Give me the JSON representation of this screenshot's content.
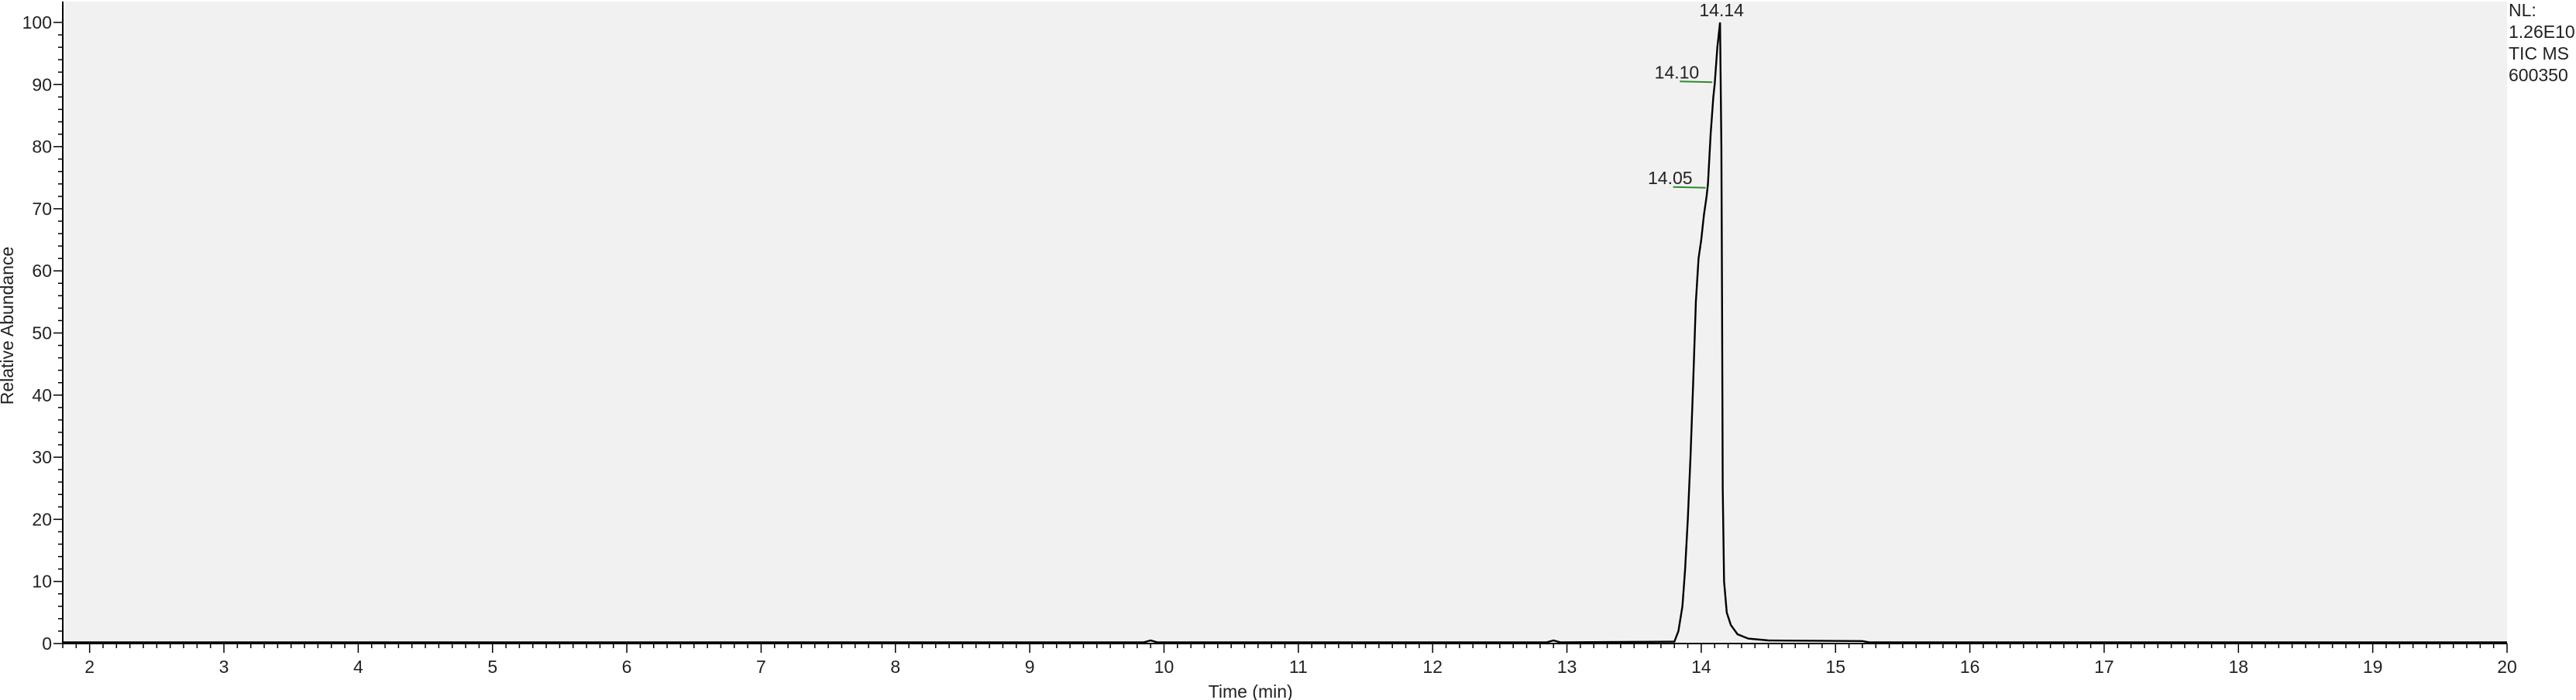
{
  "chart_data": {
    "type": "line",
    "title": "",
    "xlabel": "Time (min)",
    "ylabel": "Relative Abundance",
    "xlim": [
      1.8,
      20
    ],
    "ylim": [
      0,
      100
    ],
    "x_ticks": [
      "2",
      "3",
      "4",
      "5",
      "6",
      "7",
      "8",
      "9",
      "10",
      "11",
      "12",
      "13",
      "14",
      "15",
      "16",
      "17",
      "18",
      "19",
      "20"
    ],
    "y_ticks": [
      "0",
      "10",
      "20",
      "30",
      "40",
      "50",
      "60",
      "70",
      "80",
      "90",
      "100"
    ],
    "grid": false,
    "legend": "none",
    "colors": {
      "plot_background": "#f1f1f1",
      "trace": "#000000",
      "peak_marker": "#2e8b2e",
      "axis": "#000000"
    },
    "series": [
      {
        "points": [
          [
            1.8,
            0.2
          ],
          [
            9.85,
            0.2
          ],
          [
            9.9,
            0.5
          ],
          [
            9.95,
            0.2
          ],
          [
            12.85,
            0.2
          ],
          [
            12.9,
            0.5
          ],
          [
            12.95,
            0.2
          ],
          [
            13.8,
            0.3
          ],
          [
            13.83,
            2
          ],
          [
            13.86,
            6
          ],
          [
            13.88,
            12
          ],
          [
            13.9,
            20
          ],
          [
            13.92,
            30
          ],
          [
            13.94,
            42
          ],
          [
            13.96,
            55
          ],
          [
            13.98,
            62
          ],
          [
            14.0,
            65
          ],
          [
            14.02,
            69
          ],
          [
            14.04,
            72
          ],
          [
            14.05,
            74
          ],
          [
            14.07,
            82
          ],
          [
            14.09,
            88
          ],
          [
            14.1,
            90
          ],
          [
            14.12,
            96
          ],
          [
            14.14,
            100
          ],
          [
            14.15,
            80
          ],
          [
            14.155,
            55
          ],
          [
            14.16,
            25
          ],
          [
            14.17,
            10
          ],
          [
            14.19,
            5
          ],
          [
            14.22,
            3
          ],
          [
            14.27,
            1.5
          ],
          [
            14.35,
            0.8
          ],
          [
            14.5,
            0.5
          ],
          [
            15.2,
            0.4
          ],
          [
            15.25,
            0.2
          ],
          [
            20,
            0.2
          ]
        ]
      }
    ],
    "peak_labels": [
      {
        "x": 14.14,
        "y": 100,
        "text": "14.14"
      },
      {
        "x": 14.1,
        "y": 90.5,
        "text": "14.10"
      },
      {
        "x": 14.05,
        "y": 73.5,
        "text": "14.05"
      }
    ],
    "info": [
      "NL:",
      "1.26E10",
      "TIC  MS",
      "600350"
    ]
  }
}
